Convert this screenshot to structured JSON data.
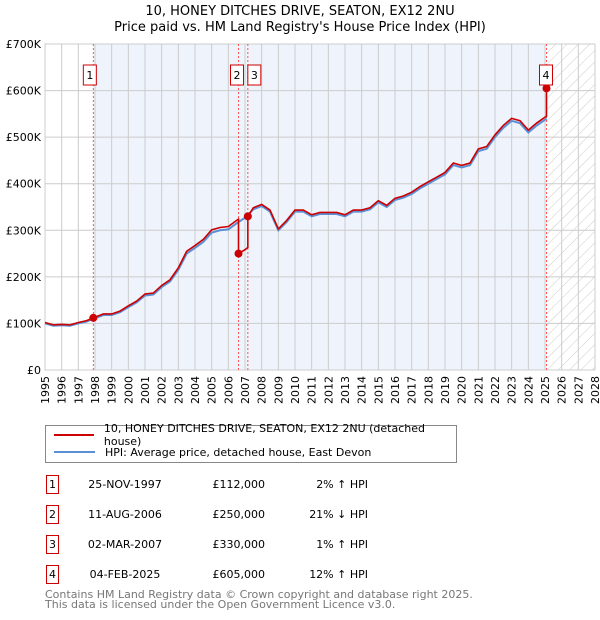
{
  "chart_data": {
    "type": "line",
    "title": "10, HONEY DITCHES DRIVE, SEATON, EX12 2NU",
    "subtitle": "Price paid vs. HM Land Registry's House Price Index (HPI)",
    "xlim": [
      1995,
      2028
    ],
    "ylim": [
      0,
      700000
    ],
    "x_ticks": [
      "1995",
      "1996",
      "1997",
      "1998",
      "1999",
      "2000",
      "2001",
      "2002",
      "2003",
      "2004",
      "2005",
      "2006",
      "2007",
      "2008",
      "2009",
      "2010",
      "2011",
      "2012",
      "2013",
      "2014",
      "2015",
      "2016",
      "2017",
      "2018",
      "2019",
      "2020",
      "2021",
      "2022",
      "2023",
      "2024",
      "2025",
      "2026",
      "2027",
      "2028"
    ],
    "y_ticks": [
      {
        "v": 0,
        "label": "£0"
      },
      {
        "v": 100000,
        "label": "£100K"
      },
      {
        "v": 200000,
        "label": "£200K"
      },
      {
        "v": 300000,
        "label": "£300K"
      },
      {
        "v": 400000,
        "label": "£400K"
      },
      {
        "v": 500000,
        "label": "£500K"
      },
      {
        "v": 600000,
        "label": "£600K"
      },
      {
        "v": 700000,
        "label": "£700K"
      }
    ],
    "grid": true,
    "colors": {
      "property": "#cc0000",
      "hpi": "#5b8fd6",
      "shade": "#eef3fc",
      "sale_line": "#ff5555"
    },
    "hpi_series": {
      "name": "HPI: Average price, detached house, East Devon",
      "x": [
        1995,
        1995.5,
        1996,
        1996.5,
        1997,
        1997.5,
        1997.9,
        1998.5,
        1999,
        1999.5,
        2000,
        2000.5,
        2001,
        2001.5,
        2002,
        2002.5,
        2003,
        2003.5,
        2004,
        2004.5,
        2005,
        2005.5,
        2006,
        2006.5,
        2007,
        2007.5,
        2008,
        2008.5,
        2009,
        2009.5,
        2010,
        2010.5,
        2011,
        2011.5,
        2012,
        2012.5,
        2013,
        2013.5,
        2014,
        2014.5,
        2015,
        2015.5,
        2016,
        2016.5,
        2017,
        2017.5,
        2018,
        2018.5,
        2019,
        2019.5,
        2020,
        2020.5,
        2021,
        2021.5,
        2022,
        2022.5,
        2023,
        2023.5,
        2024,
        2024.5,
        2025.1
      ],
      "y": [
        100000,
        95000,
        96000,
        95000,
        100000,
        104000,
        110000,
        118000,
        118000,
        124000,
        135000,
        145000,
        160000,
        162000,
        178000,
        190000,
        215000,
        250000,
        262000,
        275000,
        295000,
        300000,
        302000,
        315000,
        327000,
        345000,
        352000,
        340000,
        300000,
        318000,
        340000,
        340000,
        330000,
        335000,
        335000,
        335000,
        330000,
        340000,
        340000,
        345000,
        360000,
        350000,
        365000,
        370000,
        378000,
        390000,
        400000,
        410000,
        420000,
        440000,
        435000,
        440000,
        470000,
        475000,
        500000,
        520000,
        535000,
        530000,
        510000,
        525000,
        540000
      ]
    },
    "property_series": {
      "name": "10, HONEY DITCHES DRIVE, SEATON, EX12 2NU (detached house)"
    },
    "sales": [
      {
        "id": "1",
        "x": 1997.9,
        "price": 112000,
        "date": "25-NOV-1997",
        "price_label": "£112,000",
        "hpi": "2% ↑ HPI",
        "ratio": 1.02
      },
      {
        "id": "2",
        "x": 2006.61,
        "price": 250000,
        "date": "11-AUG-2006",
        "price_label": "£250,000",
        "hpi": "21% ↓ HPI",
        "ratio": 0.79
      },
      {
        "id": "3",
        "x": 2007.17,
        "price": 330000,
        "date": "02-MAR-2007",
        "price_label": "£330,000",
        "hpi": "1% ↑ HPI",
        "ratio": 1.01
      },
      {
        "id": "4",
        "x": 2025.09,
        "price": 605000,
        "date": "04-FEB-2025",
        "price_label": "£605,000",
        "hpi": "12% ↑ HPI",
        "ratio": 1.12
      }
    ]
  },
  "legend": {
    "property": "10, HONEY DITCHES DRIVE, SEATON, EX12 2NU (detached house)",
    "hpi": "HPI: Average price, detached house, East Devon"
  },
  "footer": {
    "line1": "Contains HM Land Registry data © Crown copyright and database right 2025.",
    "line2": "This data is licensed under the Open Government Licence v3.0."
  }
}
